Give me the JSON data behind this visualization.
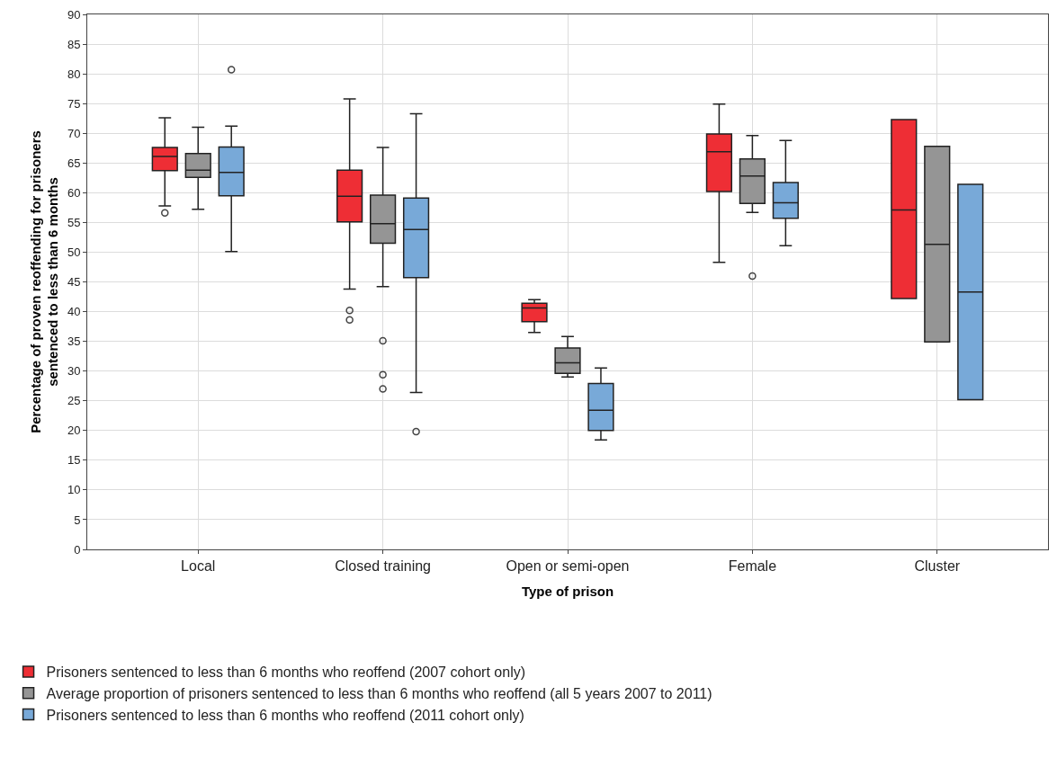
{
  "chart_data": {
    "type": "box",
    "xlabel": "Type of prison",
    "ylabel": "Percentage of proven reoffending for prisoners\nsentenced to less than 6 months",
    "categories": [
      "Local",
      "Closed training",
      "Open or semi-open",
      "Female",
      "Cluster"
    ],
    "ylim": [
      0,
      90
    ],
    "yticks": [
      0,
      5,
      10,
      15,
      20,
      25,
      30,
      35,
      40,
      45,
      50,
      55,
      60,
      65,
      70,
      75,
      80,
      85,
      90
    ],
    "grid": true,
    "legend": "bottom",
    "series": [
      {
        "name": "Prisoners sentenced to less than 6 months who reoffend (2007 cohort only)",
        "color": "#ee2e35",
        "boxes": [
          {
            "low": 57.8,
            "q1": 63.7,
            "median": 66.1,
            "q3": 67.6,
            "high": 72.6,
            "outliers": [
              56.6
            ]
          },
          {
            "low": 43.8,
            "q1": 55.1,
            "median": 59.4,
            "q3": 63.8,
            "high": 75.8,
            "outliers": [
              40.2,
              38.6
            ]
          },
          {
            "low": 36.5,
            "q1": 38.3,
            "median": 40.6,
            "q3": 41.4,
            "high": 42.0
          },
          {
            "low": 48.3,
            "q1": 60.2,
            "median": 66.9,
            "q3": 69.9,
            "high": 74.9
          },
          {
            "low": 42.2,
            "q1": 42.2,
            "median": 57.1,
            "q3": 72.3,
            "high": 72.3
          }
        ]
      },
      {
        "name": "Average proportion of prisoners sentenced to less than 6 months who reoffend (all 5 years 2007 to 2011)",
        "color": "#959595",
        "boxes": [
          {
            "low": 57.2,
            "q1": 62.6,
            "median": 63.8,
            "q3": 66.6,
            "high": 71.0
          },
          {
            "low": 44.2,
            "q1": 51.5,
            "median": 54.8,
            "q3": 59.6,
            "high": 67.6,
            "outliers": [
              35.1,
              29.4,
              27.0
            ]
          },
          {
            "low": 29.0,
            "q1": 29.6,
            "median": 31.4,
            "q3": 33.9,
            "high": 35.8
          },
          {
            "low": 56.7,
            "q1": 58.2,
            "median": 62.8,
            "q3": 65.7,
            "high": 69.6,
            "outliers": [
              46.0
            ]
          },
          {
            "low": 34.9,
            "q1": 34.9,
            "median": 51.3,
            "q3": 67.8,
            "high": 67.8
          }
        ]
      },
      {
        "name": "Prisoners sentenced to less than 6 months who reoffend (2011 cohort only)",
        "color": "#78a9d8",
        "boxes": [
          {
            "low": 50.1,
            "q1": 59.5,
            "median": 63.4,
            "q3": 67.7,
            "high": 71.2,
            "outliers": [
              80.7
            ]
          },
          {
            "low": 26.4,
            "q1": 45.7,
            "median": 53.8,
            "q3": 59.1,
            "high": 73.3,
            "outliers": [
              19.8
            ]
          },
          {
            "low": 18.4,
            "q1": 20.0,
            "median": 23.4,
            "q3": 27.9,
            "high": 30.5
          },
          {
            "low": 51.1,
            "q1": 55.7,
            "median": 58.3,
            "q3": 61.7,
            "high": 68.8
          },
          {
            "low": 25.2,
            "q1": 25.2,
            "median": 43.3,
            "q3": 61.4,
            "high": 61.4
          }
        ]
      }
    ]
  }
}
